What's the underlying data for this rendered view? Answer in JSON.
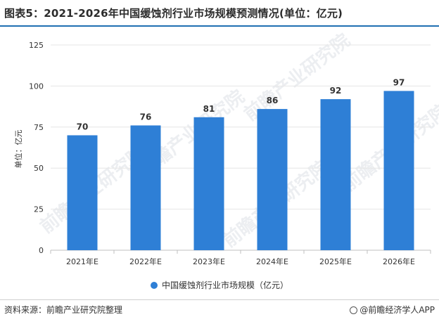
{
  "title": "图表5：2021-2026年中国缓蚀剂行业市场规模预测情况(单位：亿元)",
  "source": "资料来源：前瞻产业研究院整理",
  "brand": "@前瞻经济学人APP",
  "watermark": "前瞻产业研究院",
  "colors": {
    "bar": "#2e7fd6",
    "title_rule": "#1f6fb2",
    "grid": "#e6e6e6"
  },
  "chart_data": {
    "type": "bar",
    "categories": [
      "2021年E",
      "2022年E",
      "2023年E",
      "2024年E",
      "2025年E",
      "2026年E"
    ],
    "series": [
      {
        "name": "中国缓蚀剂行业市场规模（亿元）",
        "values": [
          70,
          76,
          81,
          86,
          92,
          97
        ]
      }
    ],
    "ylabel": "单位：亿元",
    "ylim": [
      0,
      125
    ],
    "yticks": [
      0,
      25,
      50,
      75,
      100,
      125
    ],
    "grid": true,
    "legend_position": "bottom"
  }
}
